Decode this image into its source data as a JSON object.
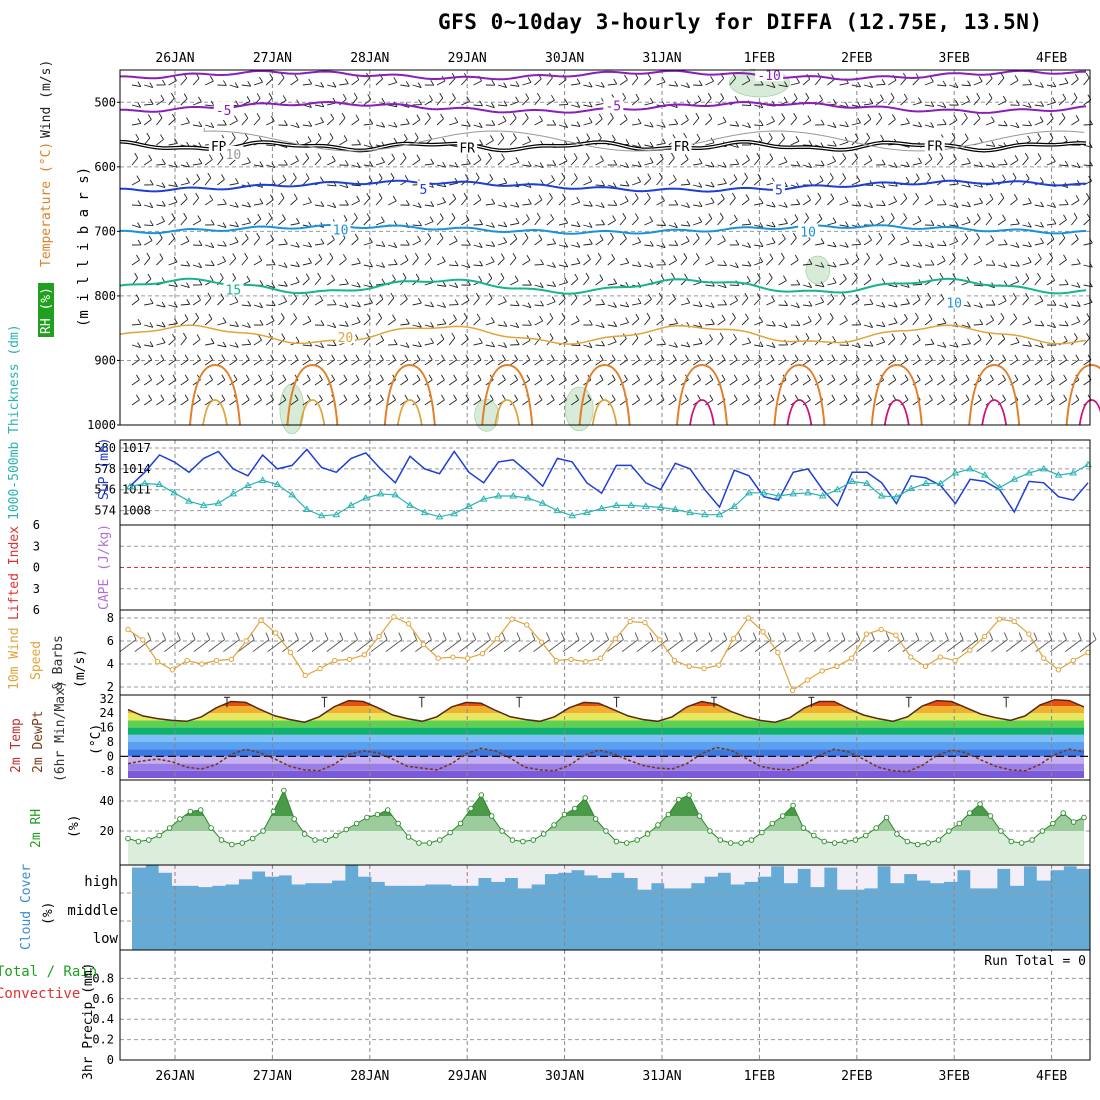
{
  "title": "GFS 0~10day 3-hourly for DIFFA (12.75E, 13.5N)",
  "dates": [
    "26JAN",
    "27JAN",
    "28JAN",
    "29JAN",
    "30JAN",
    "31JAN",
    "1FEB",
    "2FEB",
    "3FEB",
    "4FEB"
  ],
  "colors": {
    "purple": "#8a1fb8",
    "black": "#000000",
    "blue": "#1c3fd6",
    "lightblue": "#1a92d8",
    "green": "#14b58a",
    "gold": "#e0a43a",
    "orange": "#e0802a",
    "magenta": "#d0107a",
    "cyan": "#2ab3b3",
    "cloud": "#66aad6",
    "rh_fill": "#dbeedb",
    "rh_line": "#2a8a2a"
  },
  "chart_data": [
    {
      "type": "line",
      "panel": "upper-air",
      "ylabel_left_parts": [
        "RH (%)",
        "Temperature (°C)",
        "Wind (m/s)"
      ],
      "ylabel_right": "(m i l l i b a r s)",
      "ylim": [
        1000,
        450
      ],
      "yticks": [
        500,
        600,
        700,
        800,
        900,
        1000
      ],
      "contours": [
        {
          "level": "-10",
          "pressure": 458,
          "label_day": 6.1
        },
        {
          "level": "-5",
          "pressure": 512,
          "label_day": 0.5
        },
        {
          "level": "-5",
          "pressure": 505,
          "label_day": 4.5
        },
        {
          "level": "FR",
          "pressure": 568,
          "label_day": 0.45
        },
        {
          "level": "FR",
          "pressure": 570,
          "label_day": 3.0
        },
        {
          "level": "FR",
          "pressure": 568,
          "label_day": 5.2
        },
        {
          "level": "FR",
          "pressure": 567,
          "label_day": 7.8
        },
        {
          "level": "5",
          "pressure": 634,
          "label_day": 2.55
        },
        {
          "level": "5",
          "pressure": 635,
          "label_day": 6.2
        },
        {
          "level": "10",
          "pressure": 697,
          "label_day": 1.7
        },
        {
          "level": "10",
          "pressure": 700,
          "label_day": 6.5
        },
        {
          "level": "15",
          "pressure": 790,
          "label_day": 0.6
        },
        {
          "level": "20",
          "pressure": 864,
          "label_day": 1.75
        },
        {
          "level": "10",
          "pressure": 580,
          "label_day": 0.6
        },
        {
          "level": "10",
          "pressure": 810,
          "label_day": 8.0
        }
      ]
    },
    {
      "type": "line",
      "panel": "slp-thickness",
      "ylabel_left": "1000-500mb Thickness (dm)",
      "ylabel_right": "SLP (mb)",
      "left_ticks": [
        574,
        576,
        578,
        580
      ],
      "right_ticks": [
        1008,
        1011,
        1014,
        1017
      ],
      "series": [
        {
          "name": "SLP (mb)",
          "values": [
            1011.5,
            1013.5,
            1016,
            1015,
            1013.5,
            1015.5,
            1016.5,
            1014,
            1013,
            1016,
            1014,
            1014.5,
            1016.8,
            1014.2,
            1013.5,
            1015.5,
            1016.3,
            1014,
            1012,
            1015.8,
            1014,
            1013.3,
            1016.5,
            1013.5,
            1012,
            1015,
            1015.3,
            1013.5,
            1011.5,
            1015.5,
            1015,
            1012,
            1010.5,
            1014.5,
            1014.5,
            1012,
            1011,
            1014.8,
            1014,
            1011,
            1008.5,
            1013.8,
            1013,
            1010,
            1009.5,
            1013.5,
            1014,
            1011,
            1008.7,
            1013.5,
            1013.5,
            1012,
            1009,
            1013,
            1012.7,
            1011.6,
            1009,
            1012.5,
            1012.2,
            1011,
            1007.8,
            1012.2,
            1012,
            1010,
            1009.5,
            1012
          ]
        },
        {
          "name": "1000-500mb Thickness (dm)",
          "values": [
            576.3,
            576.6,
            576.5,
            575.7,
            574.9,
            574.5,
            574.7,
            575.6,
            576.4,
            576.9,
            576.5,
            575.5,
            574.1,
            573.5,
            573.6,
            574.5,
            575.2,
            575.6,
            575.5,
            574.5,
            573.8,
            573.4,
            573.7,
            574.4,
            575.1,
            575.4,
            575.4,
            575.2,
            574.7,
            574.0,
            573.5,
            573.8,
            574.2,
            574.5,
            574.5,
            574.4,
            574.3,
            574.1,
            573.8,
            573.6,
            573.6,
            574.4,
            575.7,
            575.7,
            575.4,
            575.6,
            575.7,
            575.4,
            576.0,
            576.8,
            576.6,
            575.4,
            575.3,
            576.1,
            576.6,
            576.6,
            577.6,
            578.0,
            577.4,
            576.2,
            577.0,
            577.6,
            578.0,
            577.4,
            577.6,
            578.4
          ]
        }
      ]
    },
    {
      "type": "line",
      "panel": "stability",
      "ylabel_left": "Lifted Index",
      "ylabel_right": "CAPE (J/kg)",
      "left_ticks": [
        -6,
        -3,
        0,
        3,
        6
      ],
      "ylim": [
        -6,
        6
      ],
      "series": [
        {
          "name": "Lifted Index",
          "values": []
        },
        {
          "name": "CAPE (J/kg)",
          "values": []
        }
      ]
    },
    {
      "type": "line",
      "panel": "10m-wind",
      "ylabel_left": "10m Wind Speed & Barbs",
      "ylabel_unit": "(m/s)",
      "ylim": [
        2,
        8
      ],
      "yticks": [
        2,
        4,
        6,
        8
      ],
      "series": [
        {
          "name": "10m Wind Speed",
          "values": [
            7.0,
            6.1,
            4.2,
            3.5,
            4.3,
            4.0,
            4.3,
            4.4,
            6.0,
            7.8,
            6.7,
            5.0,
            3.0,
            3.6,
            4.3,
            4.4,
            4.8,
            6.4,
            8.1,
            7.5,
            5.7,
            4.5,
            4.6,
            4.5,
            4.9,
            6.2,
            7.9,
            7.4,
            5.9,
            4.3,
            4.4,
            4.2,
            4.5,
            6.2,
            7.7,
            7.6,
            6.1,
            4.3,
            3.8,
            3.6,
            3.9,
            6.2,
            8.0,
            6.8,
            5.0,
            1.7,
            2.6,
            3.4,
            3.8,
            4.5,
            6.6,
            7.0,
            6.5,
            4.6,
            3.8,
            4.6,
            4.3,
            5.2,
            6.4,
            7.9,
            7.7,
            6.6,
            4.5,
            3.5,
            4.3,
            5.0
          ]
        }
      ]
    },
    {
      "type": "area",
      "panel": "2m-temp",
      "ylabel_left": "2m Temp 2m DewPt (6hr Min/Max)",
      "ylabel_unit": "(°C)",
      "ylim": [
        -12,
        33
      ],
      "yticks": [
        -8,
        0,
        8,
        16,
        24,
        32
      ],
      "series": [
        {
          "name": "2m Temp",
          "values": [
            26.0,
            22.5,
            21.0,
            20.0,
            19.5,
            22.0,
            27.0,
            30.5,
            30.0,
            26.0,
            22.5,
            20.5,
            19.0,
            22.0,
            27.5,
            31.0,
            30.5,
            27.0,
            23.0,
            21.0,
            19.5,
            22.0,
            27.5,
            30.0,
            29.5,
            25.5,
            22.0,
            20.5,
            19.5,
            22.0,
            27.0,
            30.0,
            29.5,
            26.0,
            22.5,
            20.5,
            19.5,
            22.0,
            27.5,
            30.5,
            29.0,
            25.0,
            22.0,
            20.0,
            19.0,
            21.5,
            27.0,
            30.5,
            30.5,
            26.5,
            23.0,
            21.0,
            19.5,
            22.0,
            28.0,
            31.0,
            30.5,
            27.0,
            23.5,
            21.5,
            20.0,
            22.5,
            28.5,
            31.5,
            31.0,
            27.5
          ]
        },
        {
          "name": "2m DewPt",
          "values": [
            -4.0,
            -2.5,
            -1.5,
            -3.0,
            -6.0,
            -7.0,
            -4.5,
            1.0,
            4.0,
            2.0,
            -1.5,
            -5.5,
            -7.5,
            -8.0,
            -4.5,
            1.0,
            3.0,
            2.0,
            -1.5,
            -5.5,
            -6.5,
            -7.5,
            -4.0,
            1.5,
            4.5,
            3.0,
            -1.0,
            -6.0,
            -7.5,
            -8.0,
            -5.0,
            0.5,
            3.5,
            1.5,
            -2.0,
            -5.0,
            -6.5,
            -7.0,
            -4.0,
            1.5,
            5.0,
            3.5,
            -1.0,
            -5.5,
            -7.0,
            -7.5,
            -4.5,
            0.5,
            4.0,
            2.5,
            -1.5,
            -6.0,
            -8.0,
            -8.5,
            -5.0,
            0.5,
            3.5,
            2.0,
            -2.0,
            -5.5,
            -7.5,
            -8.0,
            -4.5,
            1.0,
            4.0,
            2.5
          ]
        }
      ]
    },
    {
      "type": "area",
      "panel": "2m-rh",
      "ylabel_left": "2m RH",
      "ylabel_unit": "(%)",
      "ylim": [
        0,
        50
      ],
      "yticks": [
        20,
        40
      ],
      "series": [
        {
          "name": "2m RH",
          "values": [
            15,
            13,
            14,
            17,
            22,
            28,
            33,
            34,
            22,
            14,
            11,
            12,
            15,
            20,
            33,
            47,
            28,
            18,
            14,
            14,
            17,
            21,
            25,
            29,
            31,
            34,
            25,
            16,
            12,
            12,
            14,
            19,
            25,
            35,
            44,
            30,
            20,
            14,
            13,
            14,
            18,
            24,
            31,
            35,
            42,
            28,
            20,
            13,
            12,
            14,
            18,
            24,
            31,
            41,
            44,
            30,
            20,
            14,
            12,
            12,
            14,
            19,
            25,
            30,
            37,
            22,
            17,
            13,
            12,
            13,
            14,
            17,
            22,
            29,
            18,
            13,
            11,
            12,
            14,
            20,
            25,
            32,
            38,
            30,
            20,
            13,
            12,
            14,
            20,
            25,
            32,
            26,
            29
          ]
        }
      ]
    },
    {
      "type": "bar",
      "panel": "cloud-cover",
      "ylabel_left": "Cloud Cover (%)",
      "categories_text": [
        "high",
        "middle",
        "low"
      ],
      "series": [
        {
          "name": "high",
          "values": [
            90,
            100,
            70,
            20,
            20,
            15,
            20,
            25,
            45,
            75,
            55,
            60,
            25,
            30,
            30,
            40,
            100,
            55,
            35,
            20,
            20,
            20,
            25,
            25,
            20,
            20,
            50,
            35,
            50,
            10,
            25,
            65,
            70,
            80,
            60,
            50,
            70,
            50,
            5,
            30,
            10,
            10,
            30,
            55,
            70,
            25,
            35,
            55,
            95,
            30,
            85,
            15,
            90,
            5,
            5,
            10,
            95,
            30,
            65,
            40,
            30,
            35,
            80,
            10,
            10,
            85,
            20,
            95,
            40,
            80,
            95,
            85
          ]
        }
      ]
    },
    {
      "type": "bar",
      "panel": "precip",
      "ylabel_left": "3hr Precip (mm)",
      "legend_text": [
        "Total / Rain",
        "Convective"
      ],
      "annotation": "Run Total = 0",
      "ylim": [
        0,
        1
      ],
      "yticks": [
        0,
        0.2,
        0.4,
        0.6,
        0.8
      ],
      "series": [
        {
          "name": "Total / Rain",
          "values": []
        },
        {
          "name": "Convective",
          "values": []
        }
      ]
    }
  ]
}
